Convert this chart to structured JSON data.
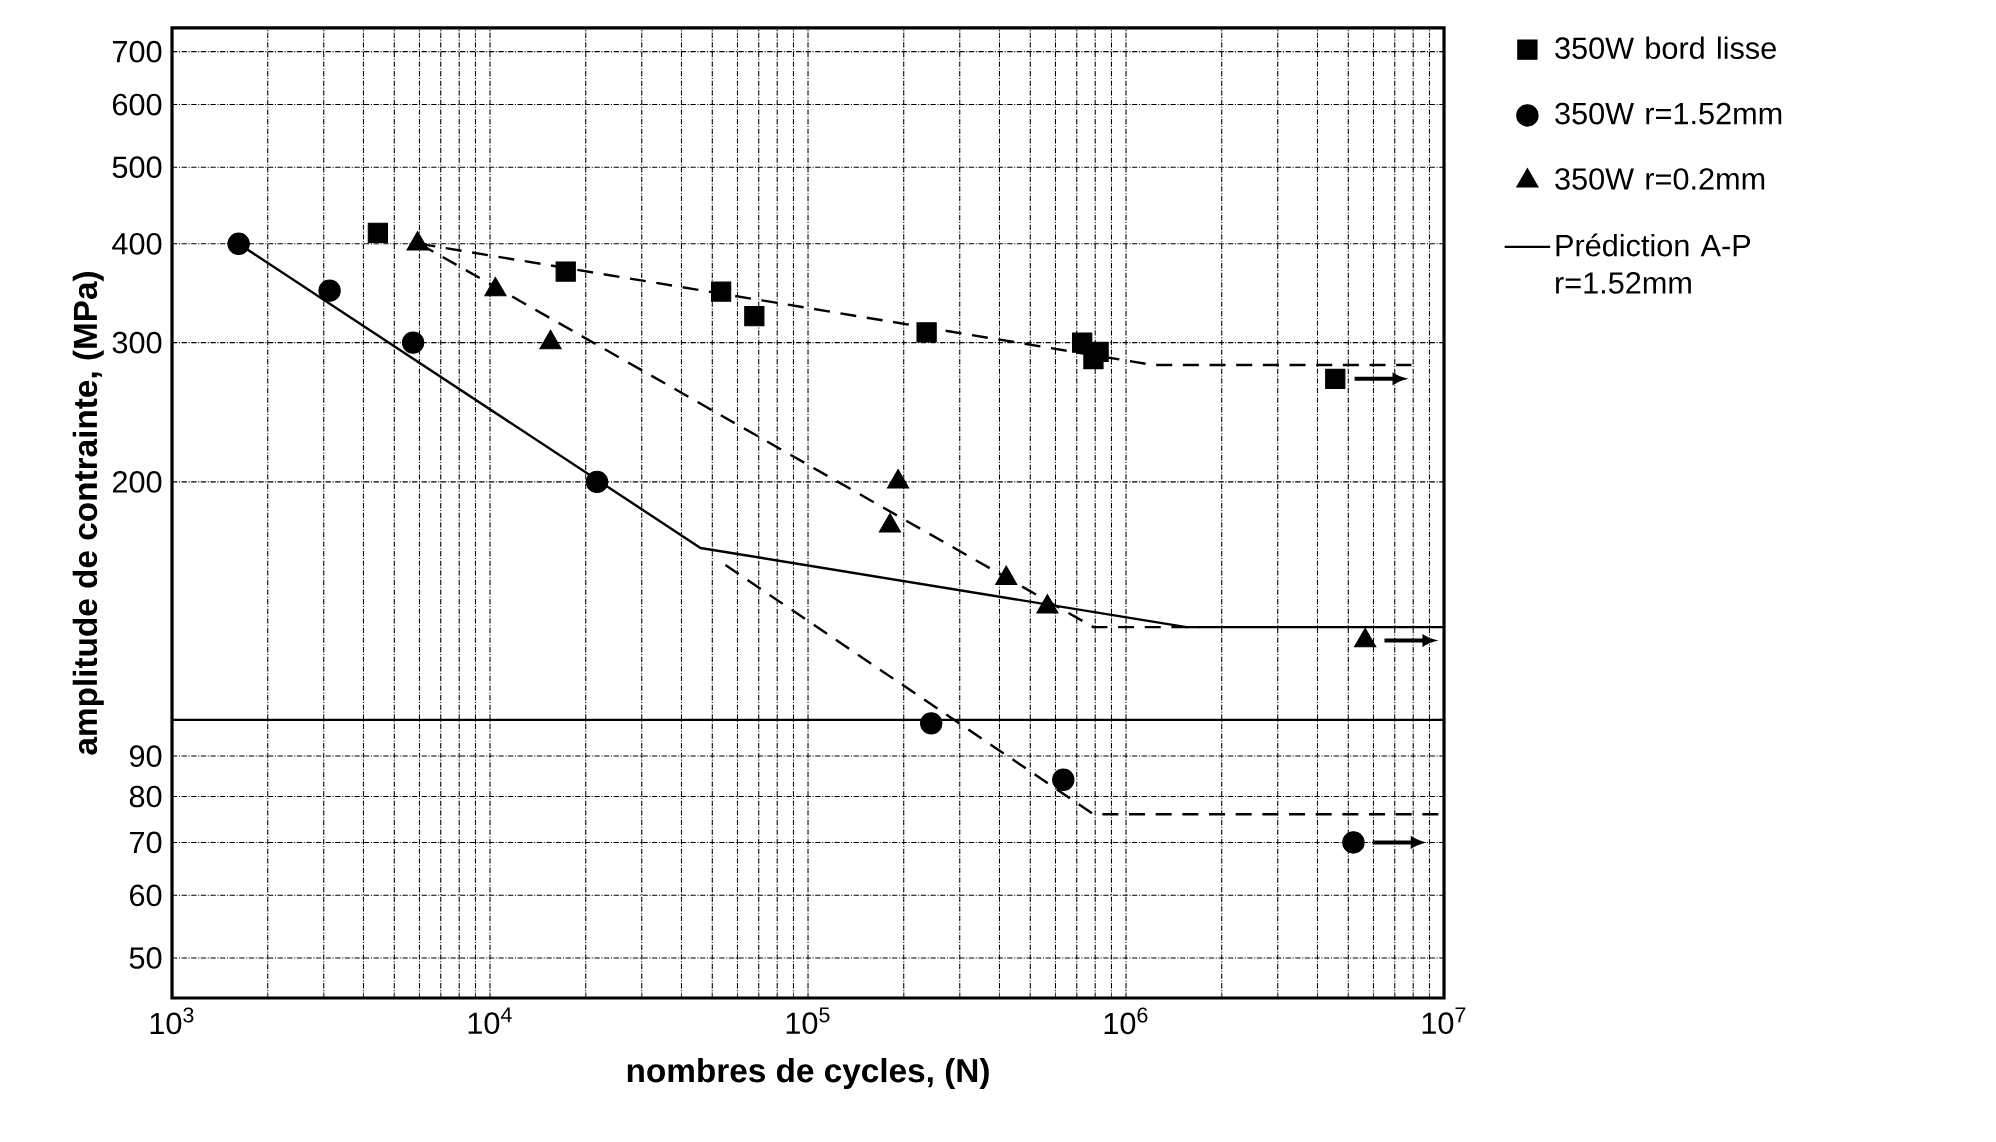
{
  "chart_data": {
    "type": "scatter",
    "xlabel": "nombres de cycles, (N)",
    "ylabel": "amplitude de contrainte, (MPa)",
    "log": "xy",
    "grid": true,
    "legend": "right",
    "xlim": [
      1000,
      10000000
    ],
    "ylim": [
      44.5,
      750
    ],
    "xticks": [
      {
        "value": 1000,
        "label": "10$^{3}$"
      },
      {
        "value": 10000,
        "label": "10$^{4}$"
      },
      {
        "value": 100000,
        "label": "10$^{5}$"
      },
      {
        "value": 1000000,
        "label": "10$^{6}$"
      },
      {
        "value": 10000000,
        "label": "10$^{7}$"
      }
    ],
    "yticks": [
      50,
      60,
      70,
      80,
      90,
      {
        "value": 100,
        "label": null
      },
      200,
      300,
      400,
      500,
      600,
      700
    ],
    "ref_lines": [
      {
        "axis": "y",
        "value": 100,
        "color": "#000000",
        "line_style": "solid"
      }
    ],
    "series": [
      {
        "name": "350W bord lisse",
        "marker": "square",
        "color": "#000000",
        "x": [
          4440,
          17300,
          53300,
          67800,
          236000,
          728000,
          820000,
          790000,
          4550000
        ],
        "values": [
          413,
          369,
          348,
          324,
          309,
          300,
          292,
          286,
          270
        ]
      },
      {
        "name": "350W r=1.52mm",
        "marker": "circle",
        "color": "#000000",
        "x": [
          1620,
          3130,
          5730,
          21700,
          244000,
          635000,
          5190000
        ],
        "values": [
          400,
          349,
          300,
          200,
          99,
          84,
          70
        ]
      },
      {
        "name": "350W r=0.2mm",
        "marker": "triangle",
        "color": "#000000",
        "x": [
          5920,
          10400,
          15500,
          192000,
          181000,
          420000,
          566000,
          5650000
        ],
        "values": [
          400,
          350,
          300,
          200,
          176,
          151,
          139,
          126
        ]
      },
      {
        "name": "Prédiction A-P r=1.52mm",
        "type": "line",
        "marker": "none",
        "line_style": "solid",
        "color": "#000000",
        "x": [
          1620,
          45900,
          1550000,
          10000000
        ],
        "values": [
          400,
          165,
          131,
          131
        ]
      },
      {
        "type": "line",
        "marker": "none",
        "line_style": "dashed",
        "color": "#000000",
        "x": [
          6000,
          1220000,
          7900000
        ],
        "values": [
          400,
          281,
          281
        ]
      },
      {
        "type": "line",
        "marker": "none",
        "line_style": "dashed",
        "color": "#000000",
        "x": [
          6000,
          790000,
          1700000
        ],
        "values": [
          400,
          131,
          131
        ]
      },
      {
        "type": "line",
        "marker": "none",
        "line_style": "dashed",
        "color": "#000000",
        "x": [
          55000,
          790000,
          10000000
        ],
        "values": [
          157,
          76,
          76
        ]
      }
    ]
  }
}
